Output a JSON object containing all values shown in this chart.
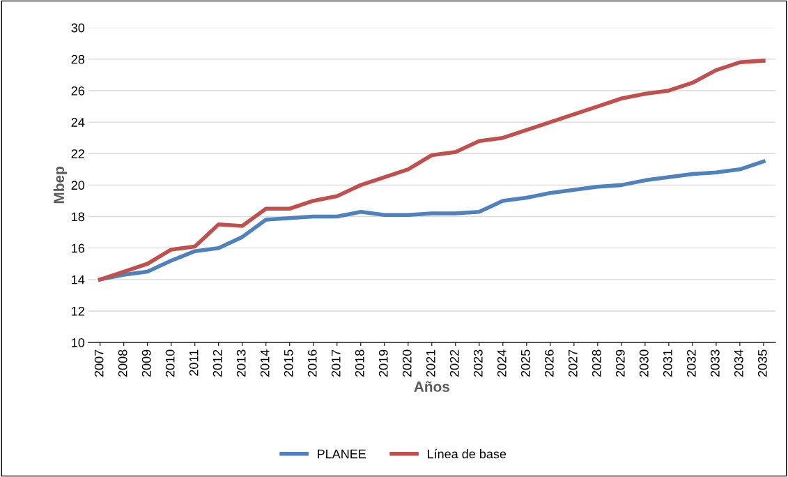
{
  "chart_data": {
    "type": "line",
    "xlabel": "Años",
    "ylabel": "Mbep",
    "categories": [
      "2007",
      "2008",
      "2009",
      "2010",
      "2011",
      "2012",
      "2013",
      "2014",
      "2015",
      "2016",
      "2017",
      "2018",
      "2019",
      "2020",
      "2021",
      "2022",
      "2023",
      "2024",
      "2025",
      "2026",
      "2027",
      "2028",
      "2029",
      "2030",
      "2031",
      "2032",
      "2033",
      "2034",
      "2035"
    ],
    "series": [
      {
        "name": "PLANEE",
        "color": "#4f81bd",
        "values": [
          14,
          14.3,
          14.5,
          15.2,
          15.8,
          16,
          16.7,
          17.8,
          17.9,
          18,
          18,
          18.3,
          18.1,
          18.1,
          18.2,
          18.2,
          18.3,
          19,
          19.2,
          19.5,
          19.7,
          19.9,
          20,
          20.3,
          20.5,
          20.7,
          20.8,
          21,
          21.5
        ]
      },
      {
        "name": "Línea de base",
        "color": "#c0504d",
        "values": [
          14,
          14.5,
          15,
          15.9,
          16.1,
          17.5,
          17.4,
          18.5,
          18.5,
          19,
          19.3,
          20,
          20.5,
          21,
          21.9,
          22.1,
          22.8,
          23,
          23.5,
          24,
          24.5,
          25,
          25.5,
          25.8,
          26,
          26.5,
          27.3,
          27.8,
          27.9
        ]
      }
    ],
    "ylim": [
      10,
      30
    ],
    "yticks": [
      10,
      12,
      14,
      16,
      18,
      20,
      22,
      24,
      26,
      28,
      30
    ],
    "grid": "y",
    "legend": "bottom",
    "marker": "none",
    "line_style": "solid"
  }
}
